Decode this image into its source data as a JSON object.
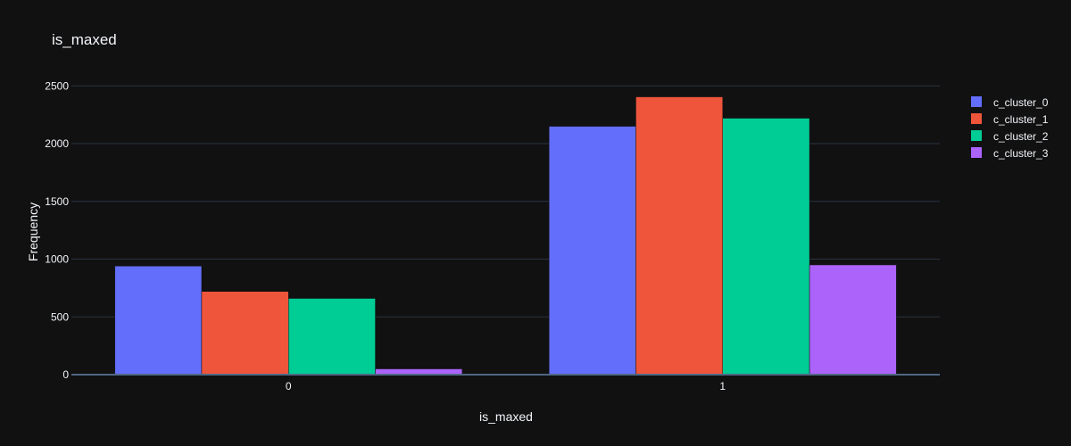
{
  "chart_data": {
    "type": "bar",
    "title": "is_maxed",
    "xlabel": "is_maxed",
    "ylabel": "Frequency",
    "categories": [
      "0",
      "1"
    ],
    "ylim": [
      0,
      2780
    ],
    "yticks": [
      0,
      500,
      1000,
      1500,
      2000,
      2500
    ],
    "ytick_labels": [
      "0",
      "500",
      "1000",
      "1500",
      "2000",
      "2500"
    ],
    "grid": true,
    "legend_position": "top-right",
    "series": [
      {
        "name": "c_cluster_0",
        "color": "#636efa",
        "values": [
          940,
          2150
        ]
      },
      {
        "name": "c_cluster_1",
        "color": "#ef553b",
        "values": [
          720,
          2405
        ]
      },
      {
        "name": "c_cluster_2",
        "color": "#00cc96",
        "values": [
          660,
          2220
        ]
      },
      {
        "name": "c_cluster_3",
        "color": "#ab63fa",
        "values": [
          50,
          950
        ]
      }
    ]
  },
  "theme": {
    "background": "#111111",
    "grid_color": "#283442",
    "axis_line_color": "#506784",
    "text_color": "#f2f5fa",
    "tick_text_color": "#f2f5fa"
  }
}
